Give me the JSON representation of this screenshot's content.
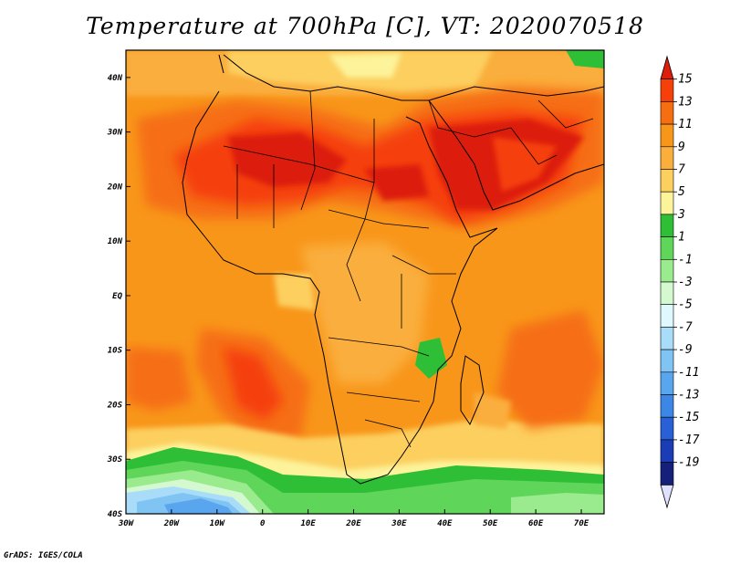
{
  "title": "Temperature at 700hPa [C], VT: 2020070518",
  "credit": "GrADS: IGES/COLA",
  "map": {
    "lon_range": [
      -30,
      75
    ],
    "lat_range": [
      -40,
      45
    ],
    "lat_ticks": [
      {
        "value": 40,
        "label": "40N"
      },
      {
        "value": 30,
        "label": "30N"
      },
      {
        "value": 20,
        "label": "20N"
      },
      {
        "value": 10,
        "label": "10N"
      },
      {
        "value": 0,
        "label": "EQ"
      },
      {
        "value": -10,
        "label": "10S"
      },
      {
        "value": -20,
        "label": "20S"
      },
      {
        "value": -30,
        "label": "30S"
      },
      {
        "value": -40,
        "label": "40S"
      }
    ],
    "lon_ticks": [
      {
        "value": -30,
        "label": "30W"
      },
      {
        "value": -20,
        "label": "20W"
      },
      {
        "value": -10,
        "label": "10W"
      },
      {
        "value": 0,
        "label": "0"
      },
      {
        "value": 10,
        "label": "10E"
      },
      {
        "value": 20,
        "label": "20E"
      },
      {
        "value": 30,
        "label": "30E"
      },
      {
        "value": 40,
        "label": "40E"
      },
      {
        "value": 50,
        "label": "50E"
      },
      {
        "value": 60,
        "label": "60E"
      },
      {
        "value": 70,
        "label": "70E"
      }
    ]
  },
  "colorbar": {
    "labels": [
      "15",
      "13",
      "11",
      "9",
      "7",
      "5",
      "3",
      "1",
      "-1",
      "-3",
      "-5",
      "-7",
      "-9",
      "-11",
      "-13",
      "-15",
      "-17",
      "-19"
    ],
    "colors": [
      "#dc1e0c",
      "#f5400a",
      "#f66e12",
      "#f8961a",
      "#faae3c",
      "#fccf5e",
      "#fdf39a",
      "#2fbf36",
      "#5fd65a",
      "#9aea8e",
      "#d4f8d0",
      "#dff8fd",
      "#a9dcf8",
      "#80c4f4",
      "#5aa6ee",
      "#3c86e6",
      "#2a60d6",
      "#1a3cb4",
      "#14207a",
      "#e0e0ff"
    ]
  }
}
